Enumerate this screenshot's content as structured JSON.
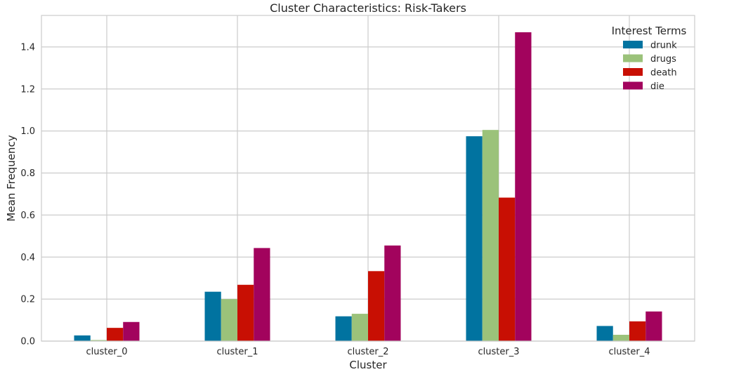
{
  "chart_data": {
    "type": "bar",
    "title": "Cluster Characteristics: Risk-Takers",
    "xlabel": "Cluster",
    "ylabel": "Mean Frequency",
    "categories": [
      "cluster_0",
      "cluster_1",
      "cluster_2",
      "cluster_3",
      "cluster_4"
    ],
    "ylim": [
      0,
      1.55
    ],
    "yticks": [
      0.0,
      0.2,
      0.4,
      0.6,
      0.8,
      1.0,
      1.2,
      1.4
    ],
    "ytick_labels": [
      "0.0",
      "0.2",
      "0.4",
      "0.6",
      "0.8",
      "1.0",
      "1.2",
      "1.4"
    ],
    "grid": true,
    "legend": {
      "title": "Interest Terms",
      "position": "top-right"
    },
    "series": [
      {
        "name": "drunk",
        "color": "#0173a0",
        "values": [
          0.027,
          0.235,
          0.118,
          0.975,
          0.072
        ]
      },
      {
        "name": "drugs",
        "color": "#9bc27a",
        "values": [
          0.005,
          0.2,
          0.13,
          1.005,
          0.03
        ]
      },
      {
        "name": "death",
        "color": "#c80f03",
        "values": [
          0.063,
          0.268,
          0.333,
          0.683,
          0.094
        ]
      },
      {
        "name": "die",
        "color": "#a2035d",
        "values": [
          0.091,
          0.443,
          0.455,
          1.47,
          0.141
        ]
      }
    ]
  }
}
